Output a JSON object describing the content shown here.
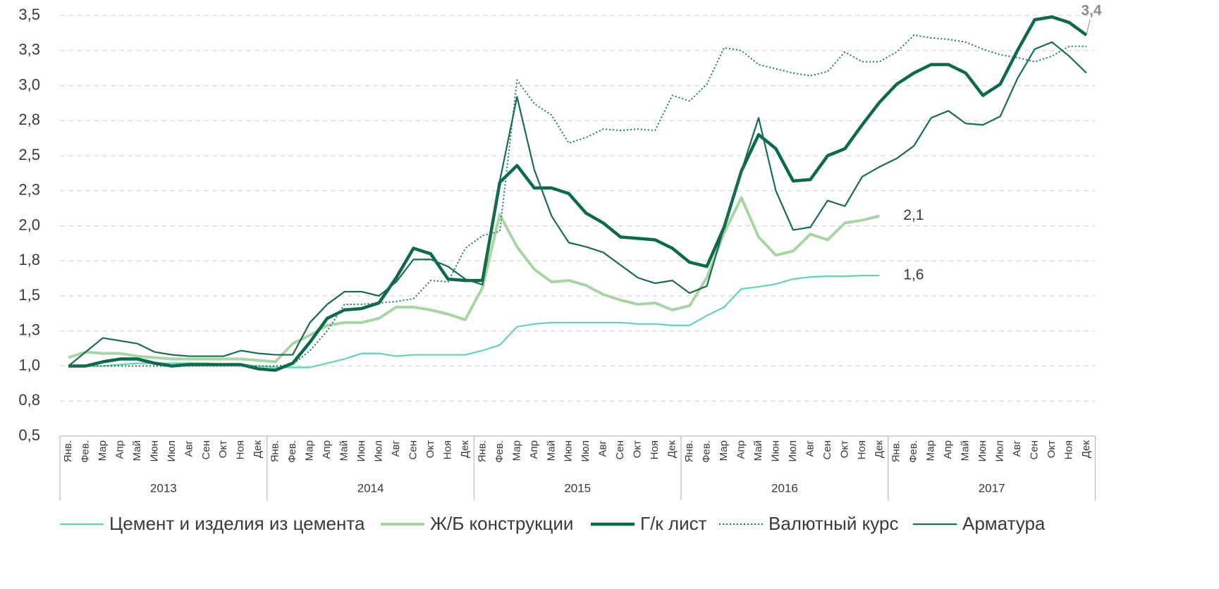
{
  "chart_data": {
    "type": "line",
    "categories": [
      "Янв.",
      "Фев.",
      "Мар",
      "Апр",
      "Май",
      "Июн",
      "Июл",
      "Авг",
      "Сен",
      "Окт",
      "Ноя",
      "Дек",
      "Янв.",
      "Фев.",
      "Мар",
      "Апр",
      "Май",
      "Июн",
      "Июл",
      "Авг",
      "Сен",
      "Окт",
      "Ноя",
      "Дек",
      "Янв.",
      "Фев.",
      "Мар",
      "Апр",
      "Май",
      "Июн",
      "Июл",
      "Авг",
      "Сен",
      "Окт",
      "Ноя",
      "Дек",
      "Янв.",
      "Фев.",
      "Мар",
      "Апр",
      "Май",
      "Июн",
      "Июл",
      "Авг",
      "Сен",
      "Окт",
      "Ноя",
      "Дек",
      "Янв.",
      "Фев.",
      "Мар",
      "Апр",
      "Май",
      "Июн",
      "Июл",
      "Авг",
      "Сен",
      "Окт",
      "Ноя",
      "Дек"
    ],
    "years": [
      "2013",
      "2014",
      "2015",
      "2016",
      "2017"
    ],
    "ylim": [
      0.5,
      3.5
    ],
    "yticks": [
      {
        "value": 0.5,
        "label": "0,5"
      },
      {
        "value": 0.75,
        "label": "0,8"
      },
      {
        "value": 1.0,
        "label": "1,0"
      },
      {
        "value": 1.25,
        "label": "1,3"
      },
      {
        "value": 1.5,
        "label": "1,5"
      },
      {
        "value": 1.75,
        "label": "1,8"
      },
      {
        "value": 2.0,
        "label": "2,0"
      },
      {
        "value": 2.25,
        "label": "2,3"
      },
      {
        "value": 2.5,
        "label": "2,5"
      },
      {
        "value": 2.75,
        "label": "2,8"
      },
      {
        "value": 3.0,
        "label": "3,0"
      },
      {
        "value": 3.25,
        "label": "3,3"
      },
      {
        "value": 3.5,
        "label": "3,5"
      }
    ],
    "grid": true,
    "legend": "bottom",
    "series": [
      {
        "name": "Цемент и изделия из цемента",
        "color": "#5fd4b6",
        "width": 2.2,
        "dash": "solid",
        "end_label": "1,6",
        "values": [
          1.0,
          1.0,
          1.0,
          1.01,
          1.02,
          1.02,
          1.02,
          1.02,
          1.02,
          1.01,
          1.01,
          1.0,
          0.99,
          0.99,
          0.99,
          1.02,
          1.05,
          1.09,
          1.09,
          1.07,
          1.08,
          1.08,
          1.08,
          1.08,
          1.11,
          1.15,
          1.28,
          1.3,
          1.31,
          1.31,
          1.31,
          1.31,
          1.31,
          1.3,
          1.3,
          1.29,
          1.29,
          1.36,
          1.42,
          1.55,
          1.565,
          1.585,
          1.62,
          1.635,
          1.64,
          1.64,
          1.645,
          1.645,
          null,
          null,
          null,
          null,
          null,
          null,
          null,
          null,
          null,
          null,
          null,
          null
        ]
      },
      {
        "name": "Ж/Б конструкции",
        "color": "#a9d4a3",
        "width": 4,
        "dash": "solid",
        "end_label": "2,1",
        "values": [
          1.06,
          1.1,
          1.09,
          1.09,
          1.07,
          1.06,
          1.05,
          1.05,
          1.05,
          1.05,
          1.05,
          1.04,
          1.03,
          1.16,
          1.22,
          1.29,
          1.31,
          1.31,
          1.34,
          1.42,
          1.42,
          1.4,
          1.37,
          1.33,
          1.56,
          2.08,
          1.85,
          1.69,
          1.6,
          1.61,
          1.575,
          1.51,
          1.47,
          1.44,
          1.45,
          1.4,
          1.43,
          1.63,
          1.95,
          2.2,
          1.92,
          1.79,
          1.82,
          1.94,
          1.9,
          2.02,
          2.04,
          2.07,
          null,
          null,
          null,
          null,
          null,
          null,
          null,
          null,
          null,
          null,
          null,
          null
        ]
      },
      {
        "name": "Г/к лист",
        "color": "#0b6a4b",
        "width": 4.5,
        "dash": "solid",
        "end_label": "3,4",
        "values": [
          1.0,
          1.0,
          1.03,
          1.05,
          1.05,
          1.02,
          1.0,
          1.01,
          1.01,
          1.01,
          1.01,
          0.98,
          0.97,
          1.02,
          1.17,
          1.34,
          1.4,
          1.41,
          1.45,
          1.63,
          1.84,
          1.8,
          1.62,
          1.61,
          1.61,
          2.31,
          2.43,
          2.27,
          2.27,
          2.23,
          2.09,
          2.02,
          1.92,
          1.91,
          1.9,
          1.84,
          1.74,
          1.71,
          1.99,
          2.39,
          2.65,
          2.55,
          2.32,
          2.33,
          2.5,
          2.55,
          2.72,
          2.88,
          3.01,
          3.09,
          3.15,
          3.15,
          3.09,
          2.93,
          3.01,
          3.25,
          3.47,
          3.49,
          3.45,
          3.36
        ]
      },
      {
        "name": "Валютный курс",
        "color": "#1e7a57",
        "width": 2,
        "dash": "dotted",
        "values": [
          1.0,
          1.0,
          1.0,
          1.0,
          1.0,
          1.0,
          1.0,
          1.0,
          1.0,
          1.0,
          1.0,
          1.0,
          1.0,
          1.01,
          1.11,
          1.25,
          1.44,
          1.44,
          1.45,
          1.46,
          1.48,
          1.61,
          1.6,
          1.84,
          1.93,
          1.96,
          3.04,
          2.87,
          2.79,
          2.59,
          2.63,
          2.69,
          2.68,
          2.69,
          2.68,
          2.93,
          2.89,
          3.01,
          3.27,
          3.25,
          3.15,
          3.12,
          3.09,
          3.07,
          3.1,
          3.24,
          3.17,
          3.17,
          3.24,
          3.36,
          3.34,
          3.33,
          3.31,
          3.26,
          3.22,
          3.2,
          3.17,
          3.21,
          3.28,
          3.28
        ]
      },
      {
        "name": "Арматура",
        "color": "#1a6c4f",
        "width": 2.2,
        "dash": "solid",
        "values": [
          1.0,
          1.1,
          1.2,
          1.18,
          1.16,
          1.1,
          1.08,
          1.07,
          1.07,
          1.07,
          1.11,
          1.09,
          1.08,
          1.08,
          1.31,
          1.44,
          1.53,
          1.53,
          1.5,
          1.6,
          1.76,
          1.76,
          1.71,
          1.62,
          1.58,
          2.32,
          2.92,
          2.4,
          2.07,
          1.88,
          1.85,
          1.81,
          1.72,
          1.63,
          1.59,
          1.61,
          1.52,
          1.57,
          1.99,
          2.39,
          2.77,
          2.25,
          1.97,
          1.99,
          2.18,
          2.14,
          2.35,
          2.42,
          2.48,
          2.57,
          2.77,
          2.82,
          2.73,
          2.72,
          2.78,
          3.05,
          3.26,
          3.31,
          3.21,
          3.09
        ]
      }
    ]
  }
}
